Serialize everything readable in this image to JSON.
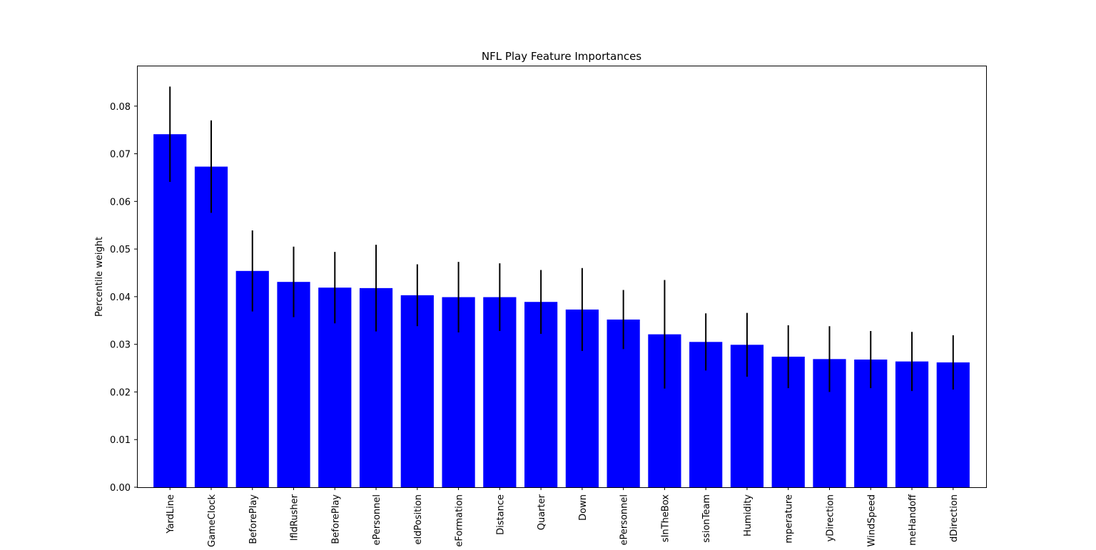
{
  "chart_data": {
    "type": "bar",
    "title": "NFL Play Feature Importances",
    "xlabel": "",
    "ylabel": "Percentile weight",
    "ylim": [
      0,
      0.0885
    ],
    "yticks": [
      "0.00",
      "0.01",
      "0.02",
      "0.03",
      "0.04",
      "0.05",
      "0.06",
      "0.07",
      "0.08"
    ],
    "ytick_values": [
      0,
      0.01,
      0.02,
      0.03,
      0.04,
      0.05,
      0.06,
      0.07,
      0.08
    ],
    "categories": [
      "YardLine",
      "GameClock",
      "BeforePlay",
      "lfldRusher",
      "BeforePlay",
      "ePersonnel",
      "eldPosition",
      "eFormation",
      "Distance",
      "Quarter",
      "Down",
      "ePersonnel",
      "sInTheBox",
      "ssionTeam",
      "Humidity",
      "mperature",
      "yDirection",
      "WindSpeed",
      "meHandoff",
      "dDirection"
    ],
    "values": [
      0.0741,
      0.0673,
      0.0454,
      0.0431,
      0.0419,
      0.0418,
      0.0403,
      0.0399,
      0.0399,
      0.0389,
      0.0373,
      0.0352,
      0.0321,
      0.0305,
      0.0299,
      0.0274,
      0.0269,
      0.0268,
      0.0264,
      0.0262
    ],
    "errors": [
      0.01,
      0.0097,
      0.0085,
      0.0074,
      0.0075,
      0.0091,
      0.0065,
      0.0074,
      0.0071,
      0.0067,
      0.0087,
      0.0062,
      0.0114,
      0.006,
      0.0067,
      0.0066,
      0.0069,
      0.006,
      0.0062,
      0.0057
    ],
    "bar_color": "#0000ff",
    "error_color": "#000000",
    "grid": false,
    "legend": "none"
  }
}
